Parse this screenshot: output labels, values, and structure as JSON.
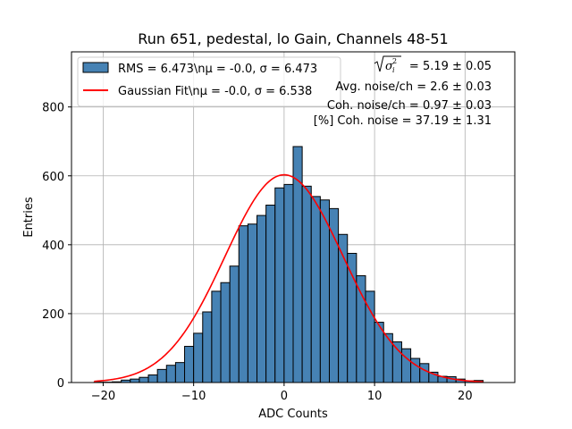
{
  "chart_data": {
    "type": "bar",
    "title": "Run 651, pedestal, lo Gain, Channels 48-51",
    "xlabel": "ADC Counts",
    "ylabel": "Entries",
    "xlim": [
      -23.5,
      25.5
    ],
    "ylim": [
      0,
      960
    ],
    "x_ticks": [
      -20,
      -10,
      0,
      10,
      20
    ],
    "x_tick_labels": [
      "−20",
      "−10",
      "0",
      "10",
      "20"
    ],
    "y_ticks": [
      0,
      200,
      400,
      600,
      800
    ],
    "y_tick_labels": [
      "0",
      "200",
      "400",
      "600",
      "800"
    ],
    "grid": true,
    "legend_position": "upper left",
    "bar_color": "#4682b4",
    "fit_color": "#ff0000",
    "bin_width": 1,
    "series": [
      {
        "name": "RMS = 6.473\\nμ = -0.0, σ = 6.473",
        "kind": "histogram",
        "bin_left_edges": [
          -21,
          -20,
          -19,
          -18,
          -17,
          -16,
          -15,
          -14,
          -13,
          -12,
          -11,
          -10,
          -9,
          -8,
          -7,
          -6,
          -5,
          -4,
          -3,
          -2,
          -1,
          0,
          1,
          2,
          3,
          4,
          5,
          6,
          7,
          8,
          9,
          10,
          11,
          12,
          13,
          14,
          15,
          16,
          17,
          18,
          19,
          20,
          21
        ],
        "values": [
          1,
          1,
          2,
          7,
          10,
          15,
          22,
          38,
          50,
          58,
          105,
          143,
          205,
          265,
          290,
          338,
          455,
          460,
          485,
          515,
          565,
          575,
          685,
          570,
          540,
          530,
          505,
          430,
          375,
          310,
          265,
          175,
          142,
          118,
          98,
          70,
          55,
          30,
          18,
          17,
          10,
          5,
          6
        ]
      },
      {
        "name": "Gaussian Fit\\nμ = -0.0, σ = 6.538",
        "kind": "gaussian",
        "mu": 0.0,
        "sigma": 6.538,
        "amplitude": 603,
        "x_range": [
          -21,
          22
        ]
      }
    ],
    "annotations": [
      "$\\sqrt{\\sigma_i^2}$ = 5.19 ± 0.05",
      "Avg. noise/ch = 2.6 ± 0.03",
      "Coh. noise/ch = 0.97 ± 0.03",
      "[%] Coh. noise = 37.19 ± 1.31"
    ]
  },
  "stats": {
    "sqrt_value": "= 5.19 ± 0.05",
    "avg_noise": "Avg. noise/ch = 2.6 ± 0.03",
    "coh_noise": "Coh. noise/ch = 0.97 ± 0.03",
    "coh_percent": "[%] Coh. noise = 37.19 ± 1.31"
  }
}
